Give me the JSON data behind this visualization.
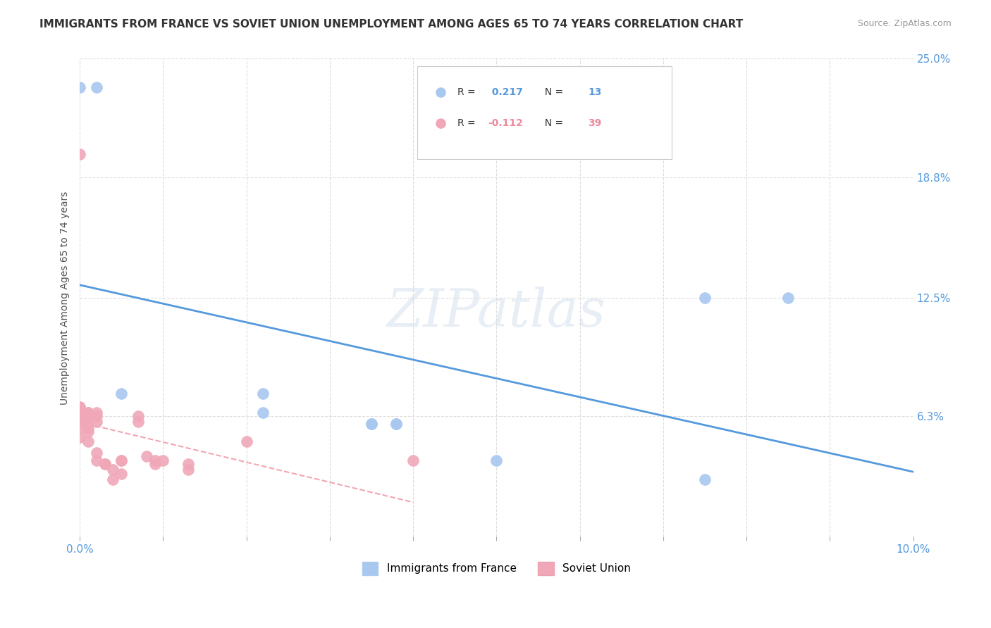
{
  "title": "IMMIGRANTS FROM FRANCE VS SOVIET UNION UNEMPLOYMENT AMONG AGES 65 TO 74 YEARS CORRELATION CHART",
  "source": "Source: ZipAtlas.com",
  "ylabel": "Unemployment Among Ages 65 to 74 years",
  "xlim": [
    0.0,
    0.1
  ],
  "ylim": [
    0.0,
    0.25
  ],
  "xticks": [
    0.0,
    0.01,
    0.02,
    0.03,
    0.04,
    0.05,
    0.06,
    0.07,
    0.08,
    0.09,
    0.1
  ],
  "xticklabels": [
    "0.0%",
    "",
    "",
    "",
    "",
    "",
    "",
    "",
    "",
    "",
    "10.0%"
  ],
  "yticks_right": [
    0.0,
    0.063,
    0.125,
    0.188,
    0.25
  ],
  "ytick_right_labels": [
    "",
    "6.3%",
    "12.5%",
    "18.8%",
    "25.0%"
  ],
  "france_R": 0.217,
  "france_N": 13,
  "soviet_R": -0.112,
  "soviet_N": 39,
  "france_color": "#a8c8f0",
  "soviet_color": "#f0a8b8",
  "france_line_color": "#5599dd",
  "soviet_line_color": "#ee8899",
  "france_x": [
    0.005,
    0.0,
    0.002,
    0.022,
    0.022,
    0.035,
    0.035,
    0.038,
    0.038,
    0.05,
    0.075,
    0.075,
    0.085
  ],
  "france_y": [
    0.075,
    0.235,
    0.235,
    0.065,
    0.075,
    0.059,
    0.059,
    0.059,
    0.059,
    0.04,
    0.125,
    0.03,
    0.125
  ],
  "soviet_x": [
    0.0,
    0.0,
    0.0,
    0.0,
    0.0,
    0.0,
    0.0,
    0.0,
    0.0,
    0.0,
    0.001,
    0.001,
    0.001,
    0.001,
    0.001,
    0.001,
    0.001,
    0.002,
    0.002,
    0.002,
    0.002,
    0.002,
    0.003,
    0.003,
    0.004,
    0.004,
    0.005,
    0.005,
    0.005,
    0.007,
    0.007,
    0.008,
    0.009,
    0.009,
    0.01,
    0.013,
    0.013,
    0.02,
    0.04
  ],
  "soviet_y": [
    0.2,
    0.065,
    0.068,
    0.068,
    0.065,
    0.063,
    0.063,
    0.06,
    0.057,
    0.052,
    0.065,
    0.065,
    0.063,
    0.06,
    0.057,
    0.055,
    0.05,
    0.065,
    0.063,
    0.06,
    0.044,
    0.04,
    0.038,
    0.038,
    0.035,
    0.03,
    0.04,
    0.04,
    0.033,
    0.063,
    0.06,
    0.042,
    0.04,
    0.038,
    0.04,
    0.038,
    0.035,
    0.05,
    0.04
  ],
  "watermark": "ZIPatlas",
  "background_color": "#ffffff",
  "grid_color": "#dddddd",
  "legend_box_edge": "#cccccc",
  "france_edge_color": "#aaccee",
  "soviet_edge_color": "#eea0b0"
}
